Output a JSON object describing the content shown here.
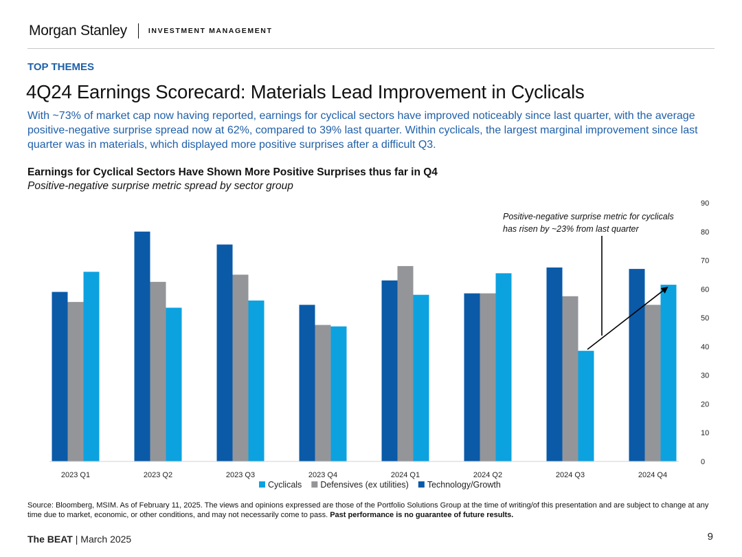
{
  "header": {
    "logo": "Morgan Stanley",
    "subtitle": "INVESTMENT MANAGEMENT"
  },
  "section_label": "TOP THEMES",
  "page_title": "4Q24 Earnings Scorecard: Materials Lead Improvement in Cyclicals",
  "intro": "With ~73% of market cap now having reported, earnings for cyclical sectors have improved noticeably since last quarter, with the average positive-negative surprise spread now at 62%, compared to 39% last quarter. Within cyclicals, the largest marginal improvement since last quarter was in materials, which displayed more positive surprises after a difficult Q3.",
  "chart_title": "Earnings for Cyclical Sectors Have Shown More Positive Surprises thus far in Q4",
  "chart_subtitle": "Positive-negative surprise metric spread by sector group",
  "chart_data": {
    "type": "bar",
    "categories": [
      "2023 Q1",
      "2023 Q2",
      "2023 Q3",
      "2023 Q4",
      "2024 Q1",
      "2024 Q2",
      "2024 Q3",
      "2024 Q4"
    ],
    "series": [
      {
        "name": "Technology/Growth",
        "color": "#0a5aa8",
        "values": [
          59,
          80,
          75.5,
          54.5,
          63,
          58.5,
          67.5,
          67
        ]
      },
      {
        "name": "Defensives (ex utilities)",
        "color": "#949599",
        "values": [
          55.5,
          62.5,
          65,
          47.5,
          68,
          58.5,
          57.5,
          54.5
        ]
      },
      {
        "name": "Cyclicals",
        "color": "#0ca2e0",
        "values": [
          66,
          53.5,
          56,
          47,
          58,
          65.5,
          38.5,
          61.5
        ]
      }
    ],
    "legend_order": [
      "Cyclicals",
      "Defensives (ex utilities)",
      "Technology/Growth"
    ],
    "ylim": [
      0,
      90
    ],
    "yticks": [
      0,
      10,
      20,
      30,
      40,
      50,
      60,
      70,
      80,
      90
    ],
    "xlabel": "",
    "ylabel": "",
    "y_axis_side": "right",
    "annotation": {
      "lines": [
        "Positive-negative surprise metric for cyclicals",
        "has risen by ~23% from last quarter"
      ],
      "from_category": "2024 Q3",
      "to_category": "2024 Q4",
      "series": "Cyclicals"
    }
  },
  "source_text": "Source: Bloomberg, MSIM. As of February 11, 2025. The views and opinions expressed are those of the Portfolio Solutions Group at the time of writing/of this presentation and are subject to change at any time due to market, economic, or other conditions, and may not necessarily come to pass.",
  "source_bold": "Past performance is no guarantee of future results.",
  "footer": {
    "brand": "The BEAT",
    "separator": "|",
    "date": "March 2025"
  },
  "page_number": "9"
}
